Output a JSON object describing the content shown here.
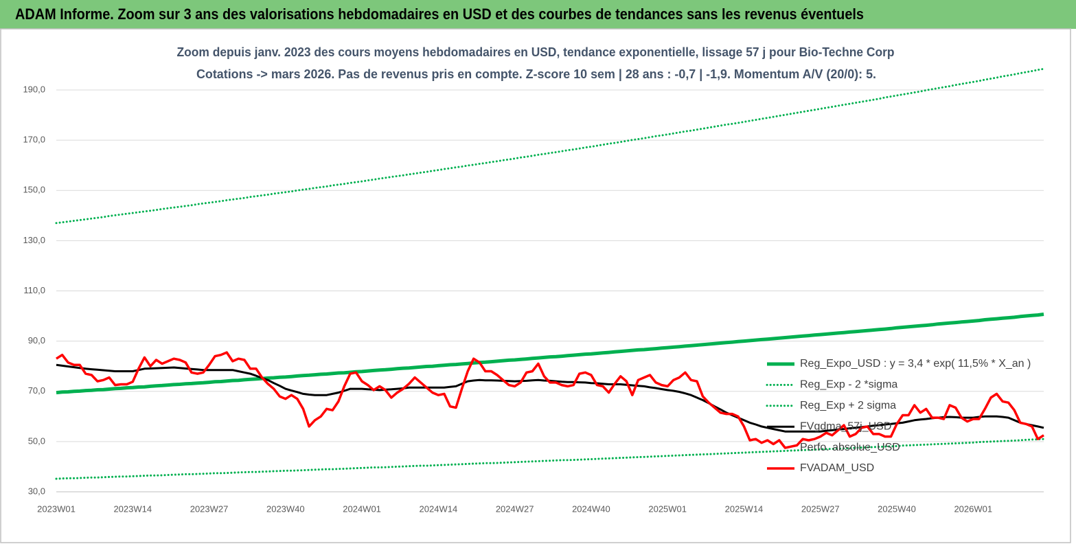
{
  "header": {
    "title": "ADAM Informe. Zoom sur 3 ans des valorisations hebdomadaires en USD et des courbes de tendances sans les revenus éventuels"
  },
  "chart_data": {
    "type": "line",
    "title": "Zoom depuis janv. 2023 des cours moyens hebdomadaires en USD, tendance exponentielle, lissage 57 j pour Bio-Techne Corp",
    "subtitle": "Cotations -> mars 2026. Pas de revenus pris en  compte. Z-score 10 sem  | 28 ans : -0,7 | -1,9. Momentum A/V (20/0): 5.",
    "ylim": [
      30,
      200
    ],
    "yticks": [
      {
        "value": 30,
        "label": "30,0"
      },
      {
        "value": 50,
        "label": "50,0"
      },
      {
        "value": 70,
        "label": "70,0"
      },
      {
        "value": 90,
        "label": "90,0"
      },
      {
        "value": 110,
        "label": "110,0"
      },
      {
        "value": 130,
        "label": "130,0"
      },
      {
        "value": 150,
        "label": "150,0"
      },
      {
        "value": 170,
        "label": "170,0"
      },
      {
        "value": 190,
        "label": "190,0"
      }
    ],
    "grid": true,
    "legend": "right",
    "categories": [
      "2023W01",
      null,
      null,
      null,
      null,
      null,
      null,
      null,
      null,
      null,
      null,
      null,
      null,
      "2023W14",
      null,
      null,
      null,
      null,
      null,
      null,
      null,
      null,
      null,
      null,
      null,
      null,
      "2023W27",
      null,
      null,
      null,
      null,
      null,
      null,
      null,
      null,
      null,
      null,
      null,
      null,
      "2023W40",
      null,
      null,
      null,
      null,
      null,
      null,
      null,
      null,
      null,
      null,
      null,
      null,
      "2024W01",
      null,
      null,
      null,
      null,
      null,
      null,
      null,
      null,
      null,
      null,
      null,
      null,
      "2024W14",
      null,
      null,
      null,
      null,
      null,
      null,
      null,
      null,
      null,
      null,
      null,
      null,
      "2024W27",
      null,
      null,
      null,
      null,
      null,
      null,
      null,
      null,
      null,
      null,
      null,
      null,
      "2024W40",
      null,
      null,
      null,
      null,
      null,
      null,
      null,
      null,
      null,
      null,
      null,
      null,
      "2025W01",
      null,
      null,
      null,
      null,
      null,
      null,
      null,
      null,
      null,
      null,
      null,
      null,
      "2025W14",
      null,
      null,
      null,
      null,
      null,
      null,
      null,
      null,
      null,
      null,
      null,
      null,
      "2025W27",
      null,
      null,
      null,
      null,
      null,
      null,
      null,
      null,
      null,
      null,
      null,
      null,
      "2025W40",
      null,
      null,
      null,
      null,
      null,
      null,
      null,
      null,
      null,
      null,
      null,
      null,
      "2026W01",
      null,
      null,
      null,
      null,
      null,
      null,
      null,
      null,
      null,
      null,
      null,
      null
    ],
    "series": [
      {
        "name": "Reg_Expo_USD : y = 3,4 * exp( 11,5% *  X_an )",
        "color": "#00b050",
        "dash": false,
        "width": 5,
        "values": [
          69.5,
          69.7,
          69.8,
          70.0,
          70.1,
          70.3,
          70.4,
          70.6,
          70.7,
          70.9,
          71.1,
          71.2,
          71.4,
          71.5,
          71.7,
          71.8,
          72.0,
          72.2,
          72.3,
          72.5,
          72.7,
          72.8,
          73.0,
          73.1,
          73.3,
          73.4,
          73.6,
          73.8,
          73.9,
          74.1,
          74.3,
          74.4,
          74.6,
          74.8,
          74.9,
          75.1,
          75.3,
          75.4,
          75.6,
          75.7,
          75.9,
          76.1,
          76.3,
          76.4,
          76.6,
          76.8,
          76.9,
          77.1,
          77.3,
          77.4,
          77.6,
          77.8,
          77.9,
          78.1,
          78.3,
          78.5,
          78.6,
          78.8,
          79.0,
          79.2,
          79.3,
          79.5,
          79.7,
          79.9,
          80.0,
          80.2,
          80.4,
          80.6,
          80.7,
          80.9,
          81.1,
          81.3,
          81.5,
          81.6,
          81.8,
          82.0,
          82.2,
          82.4,
          82.5,
          82.7,
          82.9,
          83.1,
          83.3,
          83.5,
          83.7,
          83.8,
          84.0,
          84.2,
          84.4,
          84.6,
          84.8,
          84.9,
          85.1,
          85.3,
          85.5,
          85.7,
          85.9,
          86.1,
          86.3,
          86.5,
          86.6,
          86.8,
          87.0,
          87.2,
          87.4,
          87.6,
          87.8,
          88.0,
          88.2,
          88.4,
          88.6,
          88.8,
          89.0,
          89.2,
          89.4,
          89.6,
          89.8,
          90.0,
          90.2,
          90.4,
          90.6,
          90.8,
          91.0,
          91.2,
          91.4,
          91.6,
          91.8,
          92.0,
          92.2,
          92.4,
          92.6,
          92.8,
          93.0,
          93.2,
          93.4,
          93.6,
          93.8,
          94.0,
          94.2,
          94.4,
          94.6,
          94.8,
          95.0,
          95.3,
          95.5,
          95.7,
          95.9,
          96.1,
          96.3,
          96.5,
          96.8,
          97.0,
          97.2,
          97.4,
          97.6,
          97.8,
          98.0,
          98.2,
          98.5,
          98.7,
          98.9,
          99.1,
          99.3,
          99.5,
          99.8,
          100.0,
          100.2,
          100.4,
          100.7
        ]
      },
      {
        "name": "Reg_Exp - 2 *sigma",
        "color": "#00b050",
        "dash": true,
        "width": 3,
        "values": [
          35.2,
          35.3,
          35.4,
          35.4,
          35.5,
          35.6,
          35.7,
          35.7,
          35.8,
          35.9,
          36.0,
          36.1,
          36.1,
          36.2,
          36.3,
          36.4,
          36.5,
          36.5,
          36.6,
          36.7,
          36.8,
          36.9,
          37.0,
          37.0,
          37.1,
          37.2,
          37.3,
          37.4,
          37.4,
          37.5,
          37.6,
          37.7,
          37.8,
          37.9,
          37.9,
          38.0,
          38.1,
          38.2,
          38.3,
          38.4,
          38.4,
          38.5,
          38.6,
          38.7,
          38.8,
          38.9,
          39.0,
          39.0,
          39.1,
          39.2,
          39.3,
          39.4,
          39.5,
          39.6,
          39.7,
          39.7,
          39.8,
          39.9,
          40.0,
          40.1,
          40.2,
          40.3,
          40.4,
          40.4,
          40.5,
          40.6,
          40.7,
          40.8,
          40.9,
          41.0,
          41.1,
          41.2,
          41.3,
          41.4,
          41.4,
          41.5,
          41.6,
          41.7,
          41.8,
          41.9,
          42.0,
          42.1,
          42.2,
          42.3,
          42.4,
          42.5,
          42.6,
          42.6,
          42.7,
          42.8,
          42.9,
          43.0,
          43.1,
          43.2,
          43.3,
          43.4,
          43.5,
          43.6,
          43.7,
          43.8,
          43.9,
          44.0,
          44.1,
          44.2,
          44.3,
          44.4,
          44.5,
          44.6,
          44.7,
          44.8,
          44.9,
          45.0,
          45.1,
          45.2,
          45.3,
          45.4,
          45.5,
          45.6,
          45.7,
          45.8,
          45.9,
          46.0,
          46.1,
          46.2,
          46.3,
          46.4,
          46.5,
          46.6,
          46.7,
          46.8,
          46.9,
          47.0,
          47.1,
          47.2,
          47.3,
          47.4,
          47.5,
          47.6,
          47.7,
          47.8,
          47.9,
          48.0,
          48.1,
          48.2,
          48.4,
          48.5,
          48.6,
          48.7,
          48.8,
          48.9,
          49.0,
          49.1,
          49.2,
          49.3,
          49.4,
          49.5,
          49.6,
          49.8,
          49.9,
          50.0,
          50.1,
          50.2,
          50.3,
          50.4,
          50.5,
          50.7,
          50.8,
          50.9,
          51.0
        ]
      },
      {
        "name": "Reg_Exp + 2 sigma",
        "color": "#00b050",
        "dash": true,
        "width": 3,
        "values": [
          137.0,
          137.3,
          137.6,
          137.9,
          138.2,
          138.5,
          138.8,
          139.1,
          139.4,
          139.8,
          140.1,
          140.4,
          140.7,
          141.0,
          141.3,
          141.6,
          141.9,
          142.2,
          142.6,
          142.9,
          143.2,
          143.5,
          143.8,
          144.1,
          144.5,
          144.8,
          145.1,
          145.4,
          145.7,
          146.1,
          146.4,
          146.7,
          147.0,
          147.4,
          147.7,
          148.0,
          148.3,
          148.7,
          149.0,
          149.3,
          149.6,
          150.0,
          150.3,
          150.6,
          151.0,
          151.3,
          151.6,
          152.0,
          152.3,
          152.6,
          153.0,
          153.3,
          153.6,
          154.0,
          154.3,
          154.7,
          155.0,
          155.4,
          155.7,
          156.0,
          156.4,
          156.7,
          157.1,
          157.4,
          157.8,
          158.1,
          158.5,
          158.8,
          159.2,
          159.5,
          159.9,
          160.2,
          160.6,
          160.9,
          161.3,
          161.6,
          162.0,
          162.3,
          162.7,
          163.1,
          163.4,
          163.8,
          164.2,
          164.5,
          164.9,
          165.2,
          165.6,
          166.0,
          166.3,
          166.7,
          167.1,
          167.4,
          167.8,
          168.2,
          168.6,
          168.9,
          169.3,
          169.7,
          170.1,
          170.4,
          170.8,
          171.2,
          171.6,
          171.9,
          172.3,
          172.7,
          173.1,
          173.5,
          173.8,
          174.2,
          174.6,
          175.0,
          175.4,
          175.8,
          176.2,
          176.5,
          176.9,
          177.3,
          177.7,
          178.1,
          178.5,
          178.9,
          179.3,
          179.7,
          180.1,
          180.5,
          180.9,
          181.3,
          181.7,
          182.1,
          182.5,
          182.9,
          183.3,
          183.7,
          184.1,
          184.5,
          184.9,
          185.3,
          185.7,
          186.1,
          186.5,
          187.0,
          187.4,
          187.8,
          188.2,
          188.6,
          189.0,
          189.4,
          189.9,
          190.3,
          190.7,
          191.1,
          191.5,
          192.0,
          192.4,
          192.8,
          193.2,
          193.6,
          194.1,
          194.5,
          194.9,
          195.4,
          195.8,
          196.2,
          196.7,
          197.1,
          197.5,
          198.0,
          198.4
        ]
      },
      {
        "name": "FVgdma_57j_USD",
        "color": "#000000",
        "dash": false,
        "width": 3,
        "values": [
          80.5,
          80.2,
          79.9,
          79.6,
          79.3,
          79.0,
          78.8,
          78.6,
          78.4,
          78.2,
          78.0,
          78.0,
          78.0,
          78.0,
          78.5,
          79.0,
          79.1,
          79.2,
          79.3,
          79.4,
          79.5,
          79.3,
          79.1,
          78.9,
          78.7,
          78.5,
          78.5,
          78.5,
          78.5,
          78.5,
          78.5,
          78.0,
          77.5,
          77.0,
          76.2,
          75.3,
          74.5,
          73.3,
          72.2,
          71.0,
          70.3,
          69.7,
          69.0,
          68.7,
          68.5,
          68.5,
          68.5,
          69.0,
          69.5,
          70.2,
          71.0,
          71.0,
          71.0,
          70.8,
          70.7,
          70.5,
          70.7,
          70.8,
          71.0,
          71.2,
          71.5,
          71.5,
          71.5,
          71.5,
          71.5,
          71.5,
          71.5,
          71.8,
          72.0,
          73.0,
          74.0,
          74.3,
          74.5,
          74.4,
          74.4,
          74.3,
          74.2,
          74.1,
          74.0,
          74.1,
          74.2,
          74.4,
          74.5,
          74.3,
          74.2,
          74.0,
          73.8,
          73.7,
          73.7,
          73.6,
          73.5,
          73.3,
          73.2,
          73.0,
          72.8,
          72.8,
          72.8,
          72.6,
          72.4,
          72.2,
          72.0,
          71.6,
          71.3,
          70.9,
          70.5,
          70.2,
          69.8,
          69.2,
          68.5,
          67.5,
          66.5,
          65.3,
          64.0,
          62.8,
          61.5,
          60.5,
          59.5,
          58.5,
          57.5,
          56.8,
          56.0,
          55.5,
          55.0,
          54.5,
          54.0,
          54.0,
          54.0,
          54.0,
          54.0,
          54.0,
          54.0,
          54.3,
          54.5,
          54.8,
          55.0,
          55.3,
          55.5,
          55.8,
          56.0,
          56.3,
          56.5,
          56.8,
          57.0,
          57.3,
          57.5,
          58.0,
          58.5,
          58.8,
          59.0,
          59.3,
          59.5,
          59.7,
          59.8,
          59.7,
          59.5,
          59.5,
          59.5,
          59.8,
          60.0,
          60.0,
          60.0,
          59.8,
          59.5,
          58.5,
          57.5,
          57.0,
          56.5,
          56.0,
          55.5
        ]
      },
      {
        "name": "Perfo. absolue_USD"
      },
      {
        "name": "FVADAM_USD",
        "color": "#ff0000",
        "dash": false,
        "width": 3.5,
        "values": [
          83,
          84.5,
          81.5,
          80.5,
          80.5,
          77,
          76.5,
          74,
          74.5,
          75.5,
          72.5,
          72.8,
          72.8,
          73.8,
          79,
          83.5,
          80,
          82.5,
          81,
          82,
          83,
          82.5,
          81.5,
          77.5,
          77,
          77.5,
          80.5,
          84,
          84.5,
          85.5,
          82,
          83,
          82.5,
          79,
          79,
          75.5,
          73,
          71,
          68,
          67,
          68.5,
          67,
          63,
          56,
          58.5,
          60,
          63,
          62.5,
          66,
          72,
          77,
          77.5,
          74,
          72.5,
          70.5,
          72,
          70.5,
          67.5,
          69.5,
          71,
          73,
          75.5,
          73.5,
          71.5,
          69.5,
          68.5,
          69,
          64,
          63.5,
          71,
          78,
          83,
          81.5,
          78,
          78,
          76.5,
          74.5,
          72.5,
          72,
          73.5,
          77.5,
          78,
          81,
          76,
          73.5,
          73.5,
          72.5,
          72,
          72.5,
          77,
          77.5,
          76.5,
          72.5,
          72,
          69.5,
          73,
          76,
          74,
          68.5,
          74.5,
          75.5,
          76.5,
          73.5,
          72.5,
          72,
          74.5,
          75.5,
          77.5,
          74.5,
          74,
          68,
          65.5,
          63.5,
          61.5,
          61,
          61,
          60,
          56,
          50.5,
          51,
          49.5,
          50.5,
          49,
          50.5,
          47.5,
          48,
          48.5,
          51,
          50.5,
          51,
          52,
          53.5,
          52.5,
          54.5,
          56.5,
          52,
          53,
          55.5,
          56,
          53,
          53,
          52,
          52,
          57,
          60.5,
          60.5,
          64.5,
          61.5,
          63,
          59.5,
          59.5,
          59,
          64.5,
          63.5,
          59.5,
          58,
          59,
          59,
          63,
          67.5,
          69,
          66,
          65.5,
          62.5,
          57.5,
          57,
          56,
          51,
          52.5
        ]
      }
    ]
  }
}
